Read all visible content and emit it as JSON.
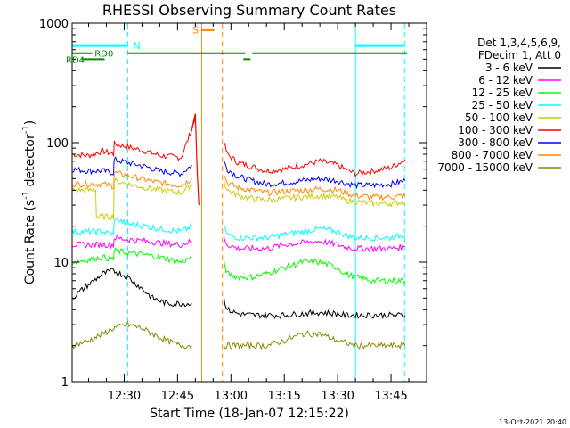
{
  "chart_data": {
    "type": "line",
    "title": "RHESSI Observing Summary Count Rates",
    "xlabel": "Start Time (18-Jan-07 12:15:22)",
    "ylabel_main": "Count Rate (s",
    "ylabel_sup1": "-1",
    "ylabel_mid": " detector",
    "ylabel_sup2": "-1",
    "ylabel_end": ")",
    "yscale": "log",
    "ylim": [
      1,
      1000
    ],
    "xlim": [
      "12:15:22",
      "13:55:00"
    ],
    "xtick_labels": [
      "12:30",
      "12:45",
      "13:00",
      "13:15",
      "13:30",
      "13:45"
    ],
    "xtick_values_min": [
      30,
      45,
      60,
      75,
      90,
      105
    ],
    "ytick_labels": [
      "1",
      "10",
      "100",
      "1000"
    ],
    "ytick_values": [
      1,
      10,
      100,
      1000
    ],
    "legend": {
      "position": "right",
      "header_line1": "Det 1,3,4,5,6,9,",
      "header_line2": "FDecim 1, Att 0",
      "entries": [
        {
          "label": "3 - 6 keV",
          "color": "#000000"
        },
        {
          "label": "6 - 12 keV",
          "color": "#ff00ff"
        },
        {
          "label": "12 - 25 keV",
          "color": "#00ff00"
        },
        {
          "label": "25 - 50 keV",
          "color": "#00ffff"
        },
        {
          "label": "50 - 100 keV",
          "color": "#cccc00"
        },
        {
          "label": "100 - 300 keV",
          "color": "#ff0000"
        },
        {
          "label": "300 - 800 keV",
          "color": "#0000ff"
        },
        {
          "label": "800 - 7000 keV",
          "color": "#ff8800"
        },
        {
          "label": "7000 - 15000 keV",
          "color": "#888800"
        }
      ]
    },
    "series": [
      {
        "name": "100 - 300 keV",
        "color": "#ff0000",
        "x_min": [
          15.4,
          20,
          24,
          27,
          27.2,
          31,
          36,
          40,
          46,
          49,
          50
        ],
        "y": [
          80,
          78,
          85,
          80,
          98,
          92,
          85,
          78,
          75,
          130,
          160
        ]
      },
      {
        "name": "100 - 300 keV",
        "color": "#ff0000",
        "x_min": [
          58,
          59,
          62,
          66,
          70,
          75,
          80,
          85,
          90,
          92,
          95,
          100,
          105,
          109
        ],
        "y": [
          100,
          80,
          68,
          63,
          58,
          60,
          65,
          70,
          65,
          60,
          55,
          58,
          62,
          72
        ]
      },
      {
        "name": "300 - 800 keV",
        "color": "#0000ff",
        "x_min": [
          15.4,
          20,
          24,
          27,
          27.2,
          31,
          36,
          40,
          46,
          49
        ],
        "y": [
          60,
          58,
          58,
          56,
          72,
          68,
          63,
          58,
          55,
          65
        ]
      },
      {
        "name": "300 - 800 keV",
        "color": "#0000ff",
        "x_min": [
          58,
          59,
          62,
          66,
          70,
          75,
          80,
          85,
          90,
          92,
          95,
          100,
          105,
          109
        ],
        "y": [
          70,
          60,
          52,
          48,
          45,
          46,
          48,
          50,
          48,
          46,
          44,
          44,
          45,
          48
        ]
      },
      {
        "name": "800 - 7000 keV",
        "color": "#ff8800",
        "x_min": [
          15.4,
          20,
          24,
          27,
          27.2,
          31,
          36,
          40,
          46,
          49
        ],
        "y": [
          45,
          45,
          45,
          43,
          56,
          53,
          49,
          46,
          44,
          50
        ]
      },
      {
        "name": "800 - 7000 keV",
        "color": "#ff8800",
        "x_min": [
          58,
          59,
          62,
          66,
          70,
          75,
          80,
          85,
          90,
          92,
          95,
          100,
          105,
          109
        ],
        "y": [
          55,
          46,
          42,
          40,
          38,
          39,
          40,
          41,
          40,
          38,
          36,
          35,
          35,
          36
        ]
      },
      {
        "name": "50 - 100 keV",
        "color": "#cccc00",
        "x_min": [
          15.4,
          20,
          22,
          22.2,
          24,
          27,
          27.2,
          31,
          36,
          40,
          46,
          49
        ],
        "y": [
          40,
          40,
          40,
          24,
          24,
          24,
          48,
          45,
          42,
          40,
          38,
          45
        ]
      },
      {
        "name": "50 - 100 keV",
        "color": "#cccc00",
        "x_min": [
          58,
          59,
          62,
          66,
          70,
          75,
          80,
          85,
          90,
          92,
          95,
          100,
          105,
          109
        ],
        "y": [
          48,
          40,
          36,
          34,
          33,
          34,
          35,
          36,
          35,
          33,
          32,
          31,
          31,
          32
        ]
      },
      {
        "name": "25 - 50 keV",
        "color": "#00ffff",
        "x_min": [
          15.4,
          20,
          24,
          27,
          27.2,
          31,
          36,
          40,
          46,
          49
        ],
        "y": [
          18,
          18,
          18,
          17,
          23,
          21,
          20,
          19,
          18,
          20
        ]
      },
      {
        "name": "25 - 50 keV",
        "color": "#00ffff",
        "x_min": [
          58,
          59,
          62,
          66,
          70,
          75,
          80,
          85,
          90,
          92,
          95,
          100,
          105,
          109
        ],
        "y": [
          20,
          17,
          16,
          16,
          16,
          17,
          18,
          19,
          18,
          17,
          16,
          16,
          16,
          17
        ]
      },
      {
        "name": "6 - 12 keV",
        "color": "#ff00ff",
        "x_min": [
          15.4,
          20,
          24,
          27,
          27.2,
          31,
          36,
          40,
          46,
          49
        ],
        "y": [
          14,
          14,
          14,
          14,
          16,
          15.5,
          15,
          14.5,
          14,
          15
        ]
      },
      {
        "name": "6 - 12 keV",
        "color": "#ff00ff",
        "x_min": [
          58,
          59,
          62,
          66,
          70,
          75,
          80,
          85,
          90,
          92,
          95,
          100,
          105,
          109
        ],
        "y": [
          16,
          14,
          13,
          13,
          13,
          14,
          14.5,
          15,
          14,
          13.5,
          13,
          13,
          13,
          13.5
        ]
      },
      {
        "name": "12 - 25 keV",
        "color": "#00ff00",
        "x_min": [
          15.4,
          20,
          24,
          27,
          27.2,
          31,
          36,
          40,
          46,
          49
        ],
        "y": [
          10,
          10.5,
          11,
          10.5,
          12.5,
          12,
          11.5,
          11,
          10,
          11
        ]
      },
      {
        "name": "12 - 25 keV",
        "color": "#00ff00",
        "x_min": [
          58,
          59,
          62,
          66,
          70,
          75,
          80,
          85,
          90,
          92,
          95,
          100,
          105,
          109
        ],
        "y": [
          10,
          8,
          7.5,
          7.5,
          8,
          9,
          10,
          10,
          9,
          8,
          7.5,
          7,
          7,
          7
        ]
      },
      {
        "name": "3 - 6 keV",
        "color": "#000000",
        "x_min": [
          15.4,
          17,
          20,
          24,
          27,
          31,
          35,
          38,
          42,
          46,
          49
        ],
        "y": [
          5,
          5.5,
          6.5,
          8,
          8.5,
          7.5,
          6,
          5,
          4.5,
          4.5,
          4.5
        ]
      },
      {
        "name": "3 - 6 keV",
        "color": "#000000",
        "x_min": [
          58,
          59,
          62,
          66,
          70,
          75,
          80,
          85,
          90,
          92,
          95,
          100,
          105,
          109
        ],
        "y": [
          5,
          4,
          3.7,
          3.6,
          3.6,
          3.6,
          3.7,
          3.8,
          3.7,
          3.6,
          3.6,
          3.6,
          3.6,
          3.6
        ]
      },
      {
        "name": "7000 - 15000 keV",
        "color": "#888800",
        "x_min": [
          15.4,
          20,
          24,
          27,
          31,
          35,
          38,
          42,
          46,
          49
        ],
        "y": [
          2,
          2.2,
          2.5,
          2.8,
          3,
          2.8,
          2.5,
          2.2,
          2,
          2
        ]
      },
      {
        "name": "7000 - 15000 keV",
        "color": "#888800",
        "x_min": [
          58,
          62,
          66,
          70,
          75,
          80,
          85,
          90,
          95,
          100,
          105,
          109
        ],
        "y": [
          2,
          2,
          2,
          2,
          2.2,
          2.5,
          2.5,
          2.2,
          2,
          2,
          2,
          2
        ]
      }
    ],
    "flare_peak": {
      "name": "100 - 300 keV",
      "color": "#ff0000",
      "x_min": [
        49,
        50,
        50.5,
        51
      ],
      "y": [
        130,
        175,
        60,
        30
      ]
    },
    "overlay_bars": {
      "night_label": "N",
      "saa_label": "S",
      "rd0_label": "RD0",
      "rd4_label": "RD4"
    },
    "vertical_lines": [
      {
        "kind": "night",
        "x_min": 31,
        "style": "dashed",
        "color": "#00ffff"
      },
      {
        "kind": "night",
        "x_min": 95,
        "style": "solid",
        "color": "#00ffff"
      },
      {
        "kind": "night",
        "x_min": 108.8,
        "style": "dashed",
        "color": "#00ffff"
      },
      {
        "kind": "saa",
        "x_min": 51.8,
        "style": "solid",
        "color": "#ff8800"
      },
      {
        "kind": "saa",
        "x_min": 57.6,
        "style": "dashed",
        "color": "#ff8800"
      }
    ],
    "timestamp": "13-Oct-2021 20:40"
  }
}
